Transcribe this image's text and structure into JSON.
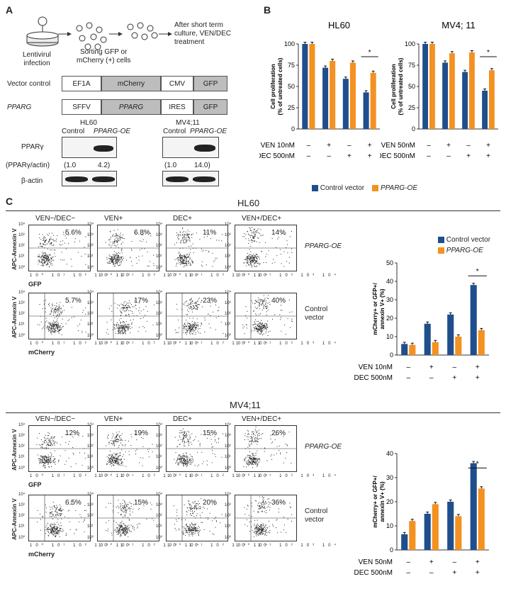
{
  "panel_a": {
    "letter": "A",
    "lentiviral": "Lentivirul\ninfection",
    "sorting": "Sorting GFP or\nmCherry (+) cells",
    "after": "After short term\nculture, VEN/DEC\ntreatment",
    "vector_control_label": "Vector control",
    "pparg_label": "PPARG",
    "construct1": [
      "EF1A",
      "mCherry",
      "CMV",
      "GFP"
    ],
    "construct2": [
      "SFFV",
      "PPARG",
      "IRES",
      "GFP"
    ],
    "hl60": {
      "title": "HL60",
      "control": "Control",
      "oe": "PPARG-OE",
      "ratio": [
        "(1.0",
        "4.2)"
      ]
    },
    "mv4": {
      "title": "MV4;11",
      "control": "Control",
      "oe": "PPARG-OE",
      "ratio": [
        "(1.0",
        "14.0)"
      ]
    },
    "ppar_label": "PPARγ",
    "ratio_label": "(PPARγ/actin)",
    "actin_label": "β-actin"
  },
  "panel_b": {
    "letter": "B",
    "ylabel": "Cell proliferation\n(% of untreated cells)",
    "legend": [
      "Control vector",
      "PPARG-OE"
    ],
    "colors": {
      "control": "#1f4e8c",
      "oe": "#f39121"
    },
    "star": "*"
  },
  "panel_c": {
    "letter": "C",
    "hl60_title": "HL60",
    "mv4_title": "MV4;11",
    "conditions": [
      "VEN−/DEC−",
      "VEN+",
      "DEC+",
      "VEN+/DEC+"
    ],
    "y_axis": "APC-Annexin V",
    "gfp": "GFP",
    "mcherry": "mCherry",
    "pparg_oe": "PPARG-OE",
    "control_vector": "Control\nvector",
    "hl60_oe_pct": [
      "5.6%",
      "6.8%",
      "11%",
      "14%"
    ],
    "hl60_ctrl_pct": [
      "5.7%",
      "17%",
      "23%",
      "40%"
    ],
    "mv4_oe_pct": [
      "12%",
      "19%",
      "15%",
      "26%"
    ],
    "mv4_ctrl_pct": [
      "6.5%",
      "15%",
      "20%",
      "36%"
    ],
    "bar_ylabel": "mCherry+ or GFP+/\nannexin V+ (%)",
    "legend": [
      "Control vector",
      "PPARG-OE"
    ]
  },
  "chart_data": [
    {
      "type": "bar",
      "title": "HL60",
      "ylabel": "Cell proliferation (% of untreated cells)",
      "ylim": [
        0,
        100
      ],
      "yticks": [
        0,
        25,
        50,
        75,
        100
      ],
      "categories": [
        "-/-",
        "VEN/-",
        "-/DEC",
        "VEN/DEC"
      ],
      "row1": "VEN 10nM",
      "row2": "DEC 500nM",
      "signs1": [
        "–",
        "+",
        "–",
        "+"
      ],
      "signs2": [
        "–",
        "–",
        "+",
        "+"
      ],
      "series": [
        {
          "name": "Control vector",
          "values": [
            100,
            72,
            59,
            43
          ]
        },
        {
          "name": "PPARG-OE",
          "values": [
            100,
            80,
            78,
            66
          ]
        }
      ]
    },
    {
      "type": "bar",
      "title": "MV4; 11",
      "ylabel": "Cell proliferation (% of untreated cells)",
      "ylim": [
        0,
        100
      ],
      "yticks": [
        0,
        25,
        50,
        75,
        100
      ],
      "categories": [
        "-/-",
        "VEN/-",
        "-/DEC",
        "VEN/DEC"
      ],
      "row1": "VEN 50nM",
      "row2": "DEC 500nM",
      "signs1": [
        "–",
        "+",
        "–",
        "+"
      ],
      "signs2": [
        "–",
        "–",
        "+",
        "+"
      ],
      "series": [
        {
          "name": "Control vector",
          "values": [
            100,
            78,
            67,
            45
          ]
        },
        {
          "name": "PPARG-OE",
          "values": [
            100,
            89,
            90,
            69
          ]
        }
      ]
    },
    {
      "type": "bar",
      "ylabel": "mCherry+ or GFP+/ annexin V+ (%)",
      "ylim": [
        0,
        50
      ],
      "yticks": [
        0,
        10,
        20,
        30,
        40,
        50
      ],
      "categories": [
        "-/-",
        "VEN/-",
        "-/DEC",
        "VEN/DEC"
      ],
      "row1": "VEN 10nM",
      "row2": "DEC 500nM",
      "signs1": [
        "–",
        "+",
        "–",
        "+"
      ],
      "signs2": [
        "–",
        "–",
        "+",
        "+"
      ],
      "series": [
        {
          "name": "Control vector",
          "values": [
            6,
            17,
            22,
            38
          ]
        },
        {
          "name": "PPARG-OE",
          "values": [
            5.5,
            7,
            10,
            13.5
          ]
        }
      ]
    },
    {
      "type": "bar",
      "ylabel": "mCherry+ or GFP+/ annexin V+ (%)",
      "ylim": [
        0,
        40
      ],
      "yticks": [
        0,
        10,
        20,
        30,
        40
      ],
      "categories": [
        "-/-",
        "VEN/-",
        "-/DEC",
        "VEN/DEC"
      ],
      "row1": "VEN 50nM",
      "row2": "DEC 500nM",
      "signs1": [
        "–",
        "+",
        "–",
        "+"
      ],
      "signs2": [
        "–",
        "–",
        "+",
        "+"
      ],
      "series": [
        {
          "name": "Control vector",
          "values": [
            6.5,
            15,
            20,
            36
          ]
        },
        {
          "name": "PPARG-OE",
          "values": [
            12,
            19,
            14,
            25.5
          ]
        }
      ]
    }
  ]
}
